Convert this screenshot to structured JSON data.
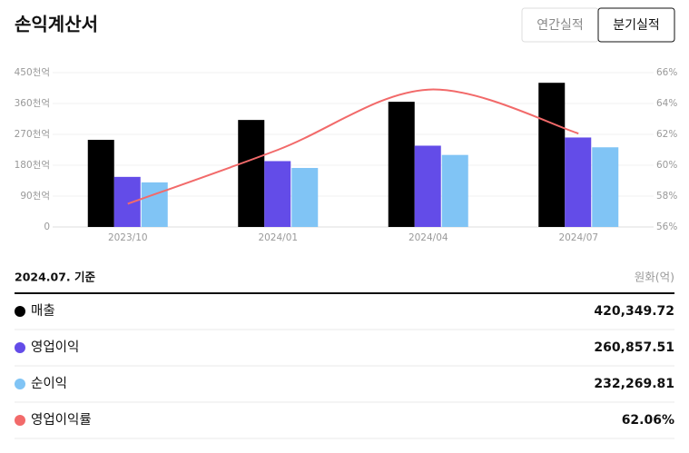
{
  "header": {
    "title": "손익계산서",
    "tabs": [
      "연간실적",
      "분기실적"
    ]
  },
  "chart_data": {
    "type": "bar",
    "categories": [
      "2023/10",
      "2024/01",
      "2024/04",
      "2024/07"
    ],
    "series": [
      {
        "name": "매출",
        "color": "#000000",
        "values": [
          254,
          312,
          365,
          420.34972
        ]
      },
      {
        "name": "영업이익",
        "color": "#634ce8",
        "values": [
          146,
          192,
          237,
          260.85751
        ]
      },
      {
        "name": "순이익",
        "color": "#80c4f5",
        "values": [
          130,
          172,
          210,
          232.26981
        ]
      },
      {
        "name": "영업이익률",
        "color": "#f26a6a",
        "type": "line",
        "axis": "y2",
        "values": [
          57.5,
          61.0,
          64.9,
          62.06
        ]
      }
    ],
    "ylim": [
      0,
      450
    ],
    "yticks": [
      0,
      {
        "value": 90,
        "label": "90천억"
      },
      {
        "value": 180,
        "label": "180천억"
      },
      {
        "value": 270,
        "label": "270천억"
      },
      {
        "value": 360,
        "label": "360천억"
      },
      {
        "value": 450,
        "label": "450천억"
      }
    ],
    "y2lim": [
      56,
      66
    ],
    "y2ticks": [
      {
        "value": 56,
        "label": "56%"
      },
      {
        "value": 58,
        "label": "58%"
      },
      {
        "value": 60,
        "label": "60%"
      },
      {
        "value": 62,
        "label": "62%"
      },
      {
        "value": 64,
        "label": "64%"
      },
      {
        "value": 66,
        "label": "66%"
      }
    ],
    "grid": true
  },
  "summary": {
    "date": "2024.07. 기준",
    "unit": "원화(억)",
    "value_labels": [
      "420,349.72",
      "260,857.51",
      "232,269.81",
      "62.06%"
    ]
  }
}
